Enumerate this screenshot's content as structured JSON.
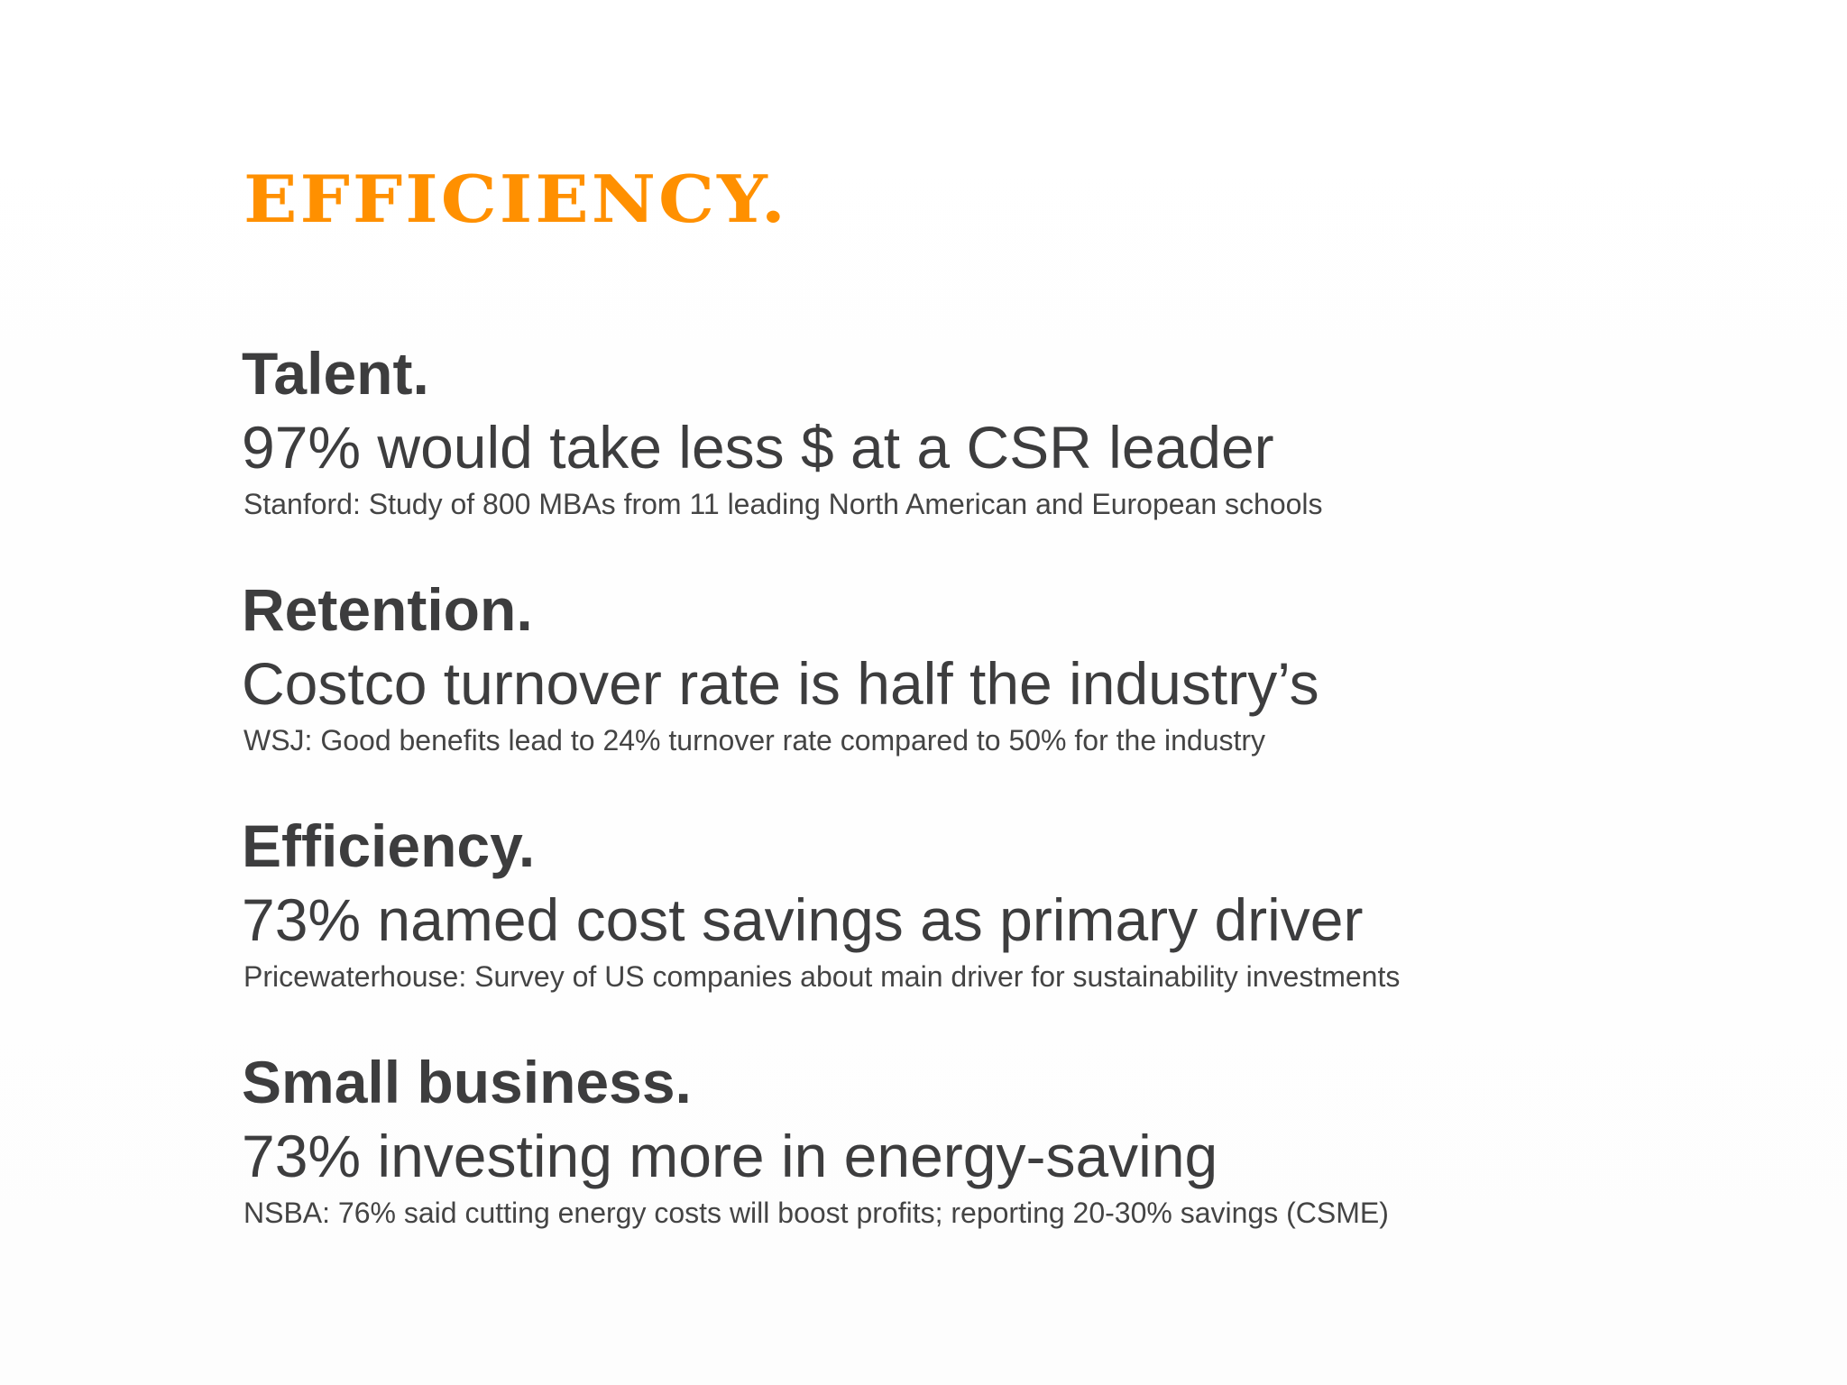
{
  "title": "EFFICIENCY.",
  "accent_color": "#ff9000",
  "text_color": "#3d3d3e",
  "items": [
    {
      "heading": "Talent.",
      "stat": "97% would take less $ at a CSR leader",
      "source": "Stanford: Study of 800 MBAs from 11 leading North American and European schools"
    },
    {
      "heading": "Retention.",
      "stat": "Costco turnover rate is half the industry’s",
      "source": "WSJ: Good benefits lead to 24% turnover rate compared to 50% for the industry"
    },
    {
      "heading": "Efficiency.",
      "stat": "73% named cost savings as primary driver",
      "source": "Pricewaterhouse: Survey of US companies about main driver for sustainability investments"
    },
    {
      "heading": "Small business.",
      "stat": "73% investing more in energy-saving",
      "source": "NSBA: 76% said cutting energy costs will boost profits; reporting 20-30% savings (CSME)"
    }
  ]
}
